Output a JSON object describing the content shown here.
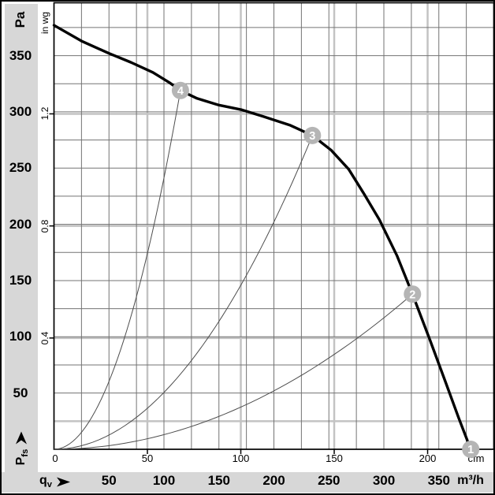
{
  "axes": {
    "pressure_unit": "Pa",
    "pressure_imperial_unit": "in wg",
    "flow_unit": "m³/h",
    "flow_imperial_unit": "cfm",
    "pressure_symbol": "P",
    "pressure_symbol_subscript": "fs",
    "flow_symbol": "q",
    "flow_symbol_subscript": "v",
    "flow_zero_label": "0"
  },
  "colors": {
    "band": "#d7d7d7",
    "grid": "#737373",
    "grid_light": "#c3c3c3",
    "plot_border": "#000000",
    "fan_curve": "#000000",
    "system_curve": "#4d4d4d",
    "marker": "#b5b5b5",
    "marker_text": "#ffffff"
  },
  "chart_data": {
    "type": "line",
    "title": "",
    "xlabel": "qv (m³/h)",
    "ylabel": "Pfs (Pa)",
    "x_unit": "m³/h",
    "y_unit": "Pa",
    "x2_unit": "cfm",
    "y2_unit": "in wg",
    "xlim": [
      0,
      400
    ],
    "ylim": [
      0,
      397
    ],
    "grid_step_m3h": 25,
    "grid_step_pa": 25,
    "x_ticks_m3h": [
      50,
      100,
      150,
      200,
      250,
      300,
      350
    ],
    "x_ticks_cfm": [
      0,
      50,
      100,
      150,
      200
    ],
    "y_ticks_pa": [
      350,
      300,
      250,
      200,
      150,
      100,
      50
    ],
    "y_ticks_inwg": [
      1.2,
      0.8,
      0.4
    ],
    "cfm_to_m3h": 1.699,
    "inwg_to_pa": 249.1,
    "light_pa_lines": [
      25
    ],
    "fan_curve_points": [
      [
        0,
        377
      ],
      [
        25,
        363
      ],
      [
        50,
        352
      ],
      [
        70,
        344
      ],
      [
        90,
        335
      ],
      [
        105,
        326
      ],
      [
        115,
        319
      ],
      [
        130,
        312
      ],
      [
        150,
        306
      ],
      [
        170,
        302
      ],
      [
        190,
        296
      ],
      [
        215,
        288
      ],
      [
        235,
        279
      ],
      [
        252,
        266
      ],
      [
        268,
        249
      ],
      [
        282,
        227
      ],
      [
        296,
        204
      ],
      [
        312,
        172
      ],
      [
        326,
        138
      ],
      [
        342,
        97
      ],
      [
        356,
        60
      ],
      [
        368,
        28
      ],
      [
        379,
        0
      ]
    ],
    "operating_points": [
      {
        "id": "1",
        "q_m3h": 379,
        "p_pa": 0,
        "system_curve": false
      },
      {
        "id": "2",
        "q_m3h": 326,
        "p_pa": 138,
        "system_curve": true
      },
      {
        "id": "3",
        "q_m3h": 235,
        "p_pa": 279,
        "system_curve": true
      },
      {
        "id": "4",
        "q_m3h": 115,
        "p_pa": 319,
        "system_curve": true
      }
    ]
  }
}
